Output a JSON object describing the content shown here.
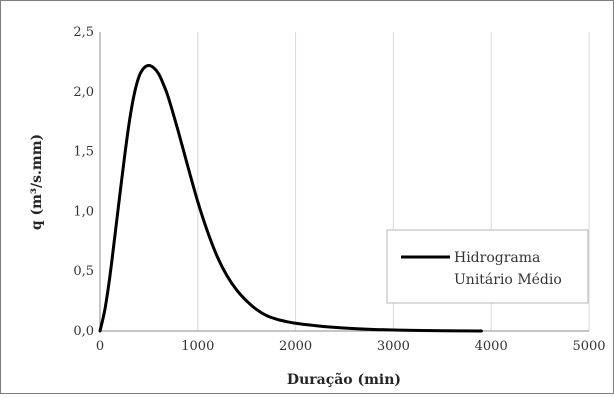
{
  "chart_data": {
    "type": "line",
    "title": "",
    "xlabel": "Duração (min)",
    "ylabel": "q (m³/s.mm)",
    "xlim": [
      0,
      5000
    ],
    "ylim": [
      0,
      2.5
    ],
    "x_ticks": [
      0,
      1000,
      2000,
      3000,
      4000,
      5000
    ],
    "y_ticks": [
      0.0,
      0.5,
      1.0,
      1.5,
      2.0,
      2.5
    ],
    "x_tick_labels": [
      "0",
      "1000",
      "2000",
      "3000",
      "4000",
      "5000"
    ],
    "y_tick_labels": [
      "0,0",
      "0,5",
      "1,0",
      "1,5",
      "2,0",
      "2,5"
    ],
    "grid": "vertical",
    "legend_position": "right",
    "legend_label_lines": [
      "Hidrograma",
      "Unitário Médio"
    ],
    "series": [
      {
        "name": "Hidrograma Unitário Médio",
        "color": "#000000",
        "x": [
          0,
          50,
          100,
          150,
          200,
          250,
          300,
          350,
          400,
          450,
          500,
          550,
          600,
          650,
          700,
          800,
          900,
          1000,
          1100,
          1200,
          1300,
          1400,
          1500,
          1600,
          1700,
          1800,
          1900,
          2000,
          2200,
          2400,
          2600,
          2800,
          3000,
          3200,
          3500,
          3900
        ],
        "y": [
          0.0,
          0.18,
          0.45,
          0.78,
          1.12,
          1.45,
          1.75,
          1.98,
          2.13,
          2.2,
          2.22,
          2.2,
          2.15,
          2.06,
          1.95,
          1.67,
          1.37,
          1.08,
          0.83,
          0.62,
          0.46,
          0.34,
          0.25,
          0.18,
          0.13,
          0.1,
          0.08,
          0.065,
          0.045,
          0.03,
          0.02,
          0.013,
          0.008,
          0.005,
          0.002,
          0.0
        ]
      }
    ]
  }
}
